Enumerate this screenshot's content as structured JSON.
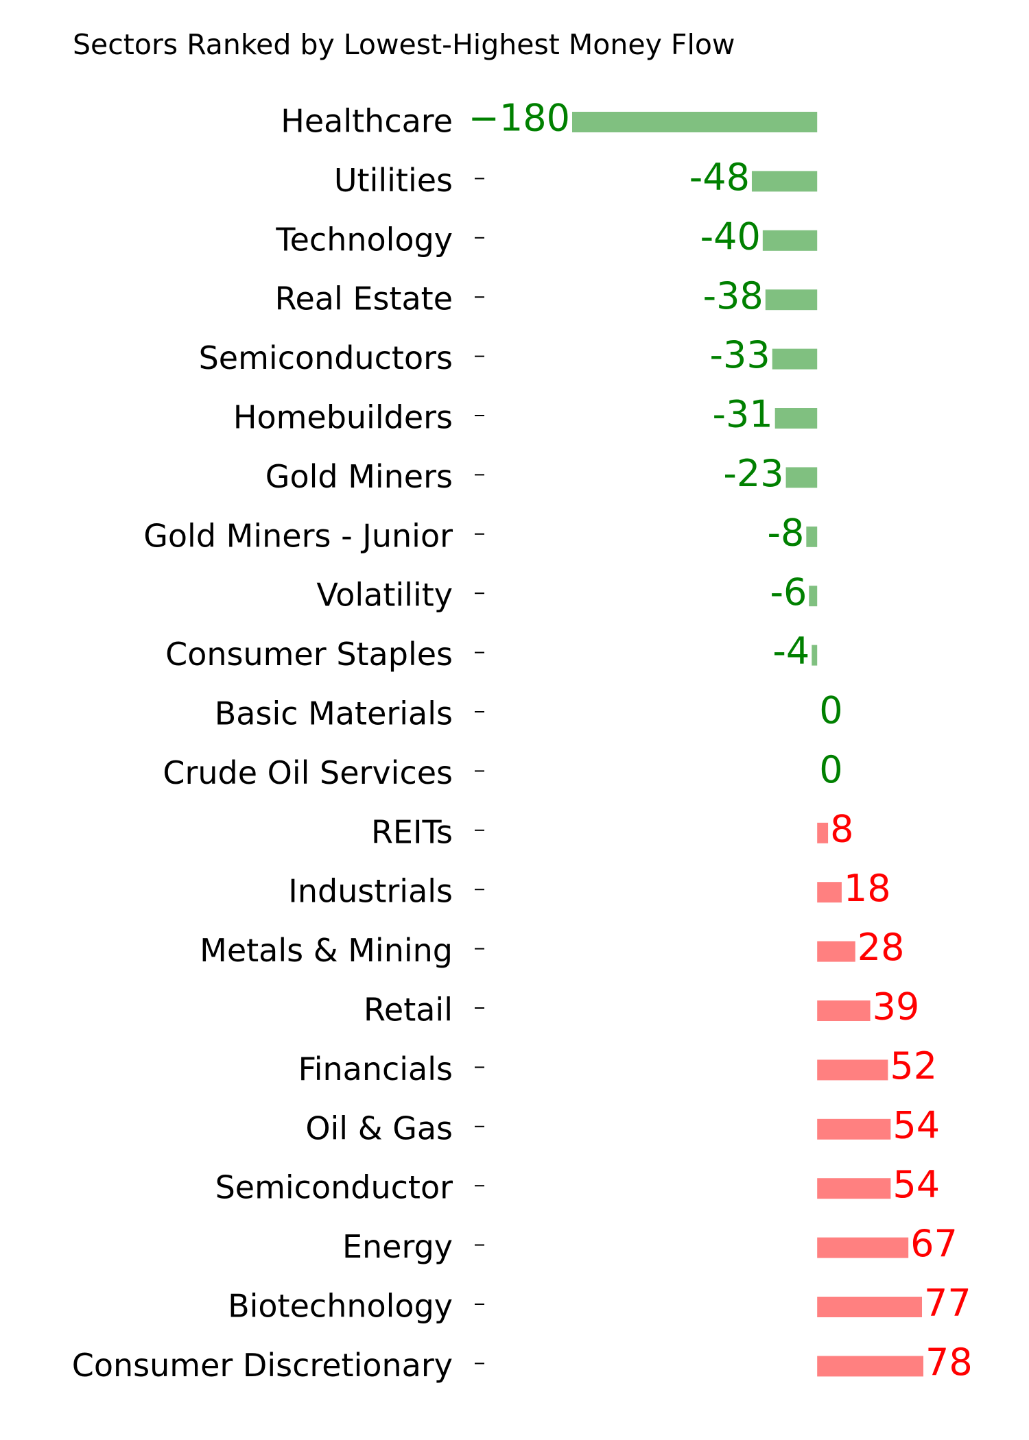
{
  "chart_data": {
    "type": "barh",
    "title": "Sectors Ranked by Lowest-Highest Money Flow",
    "categories": [
      "Healthcare",
      "Utilities",
      "Technology",
      "Real Estate",
      "Semiconductors",
      "Homebuilders",
      "Gold Miners",
      "Gold Miners - Junior",
      "Volatility",
      "Consumer Staples",
      "Basic Materials",
      "Crude Oil Services",
      "REITs",
      "Industrials",
      "Metals & Mining",
      "Retail",
      "Financials",
      "Oil & Gas",
      "Semiconductor",
      "Energy",
      "Biotechnology",
      "Consumer Discretionary"
    ],
    "values": [
      -180,
      -48,
      -40,
      -38,
      -33,
      -31,
      -23,
      -8,
      -6,
      -4,
      0,
      0,
      8,
      18,
      28,
      39,
      52,
      54,
      54,
      67,
      77,
      78
    ],
    "value_labels": [
      "−180",
      "-48",
      "-40",
      "-38",
      "-33",
      "-31",
      "-23",
      "-8",
      "-6",
      "-4",
      "0",
      "0",
      "8",
      "18",
      "28",
      "39",
      "52",
      "54",
      "54",
      "67",
      "77",
      "78"
    ],
    "negative_color": "#80c080",
    "positive_color": "#ff8080",
    "negative_label_color": "#008000",
    "positive_label_color": "#ff0000"
  }
}
